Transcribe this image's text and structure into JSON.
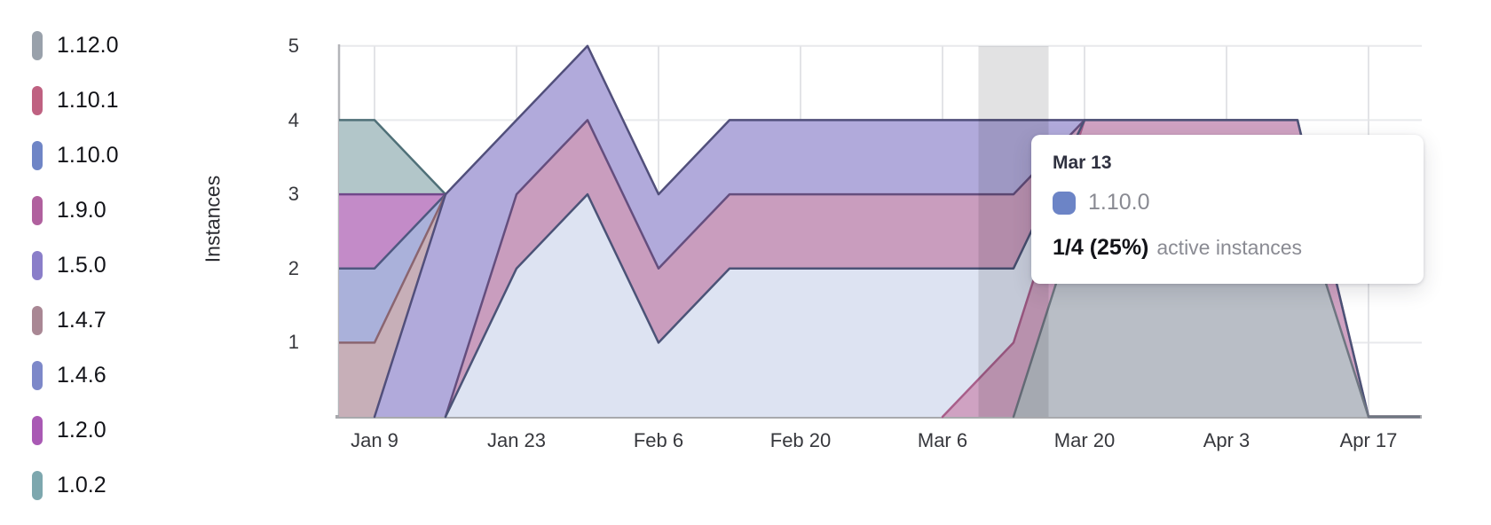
{
  "axis": {
    "y_label": "Instances",
    "y_tick_labels": [
      "5",
      "4",
      "3",
      "2",
      "1"
    ],
    "x_tick_labels": [
      "Jan 9",
      "Jan 23",
      "Feb 6",
      "Feb 20",
      "Mar 6",
      "Mar 20",
      "Apr 3",
      "Apr 17"
    ]
  },
  "legend": {
    "items": [
      {
        "label": "1.12.0",
        "color": "#99a1ab"
      },
      {
        "label": "1.10.1",
        "color": "#bf6181"
      },
      {
        "label": "1.10.0",
        "color": "#6f85c6"
      },
      {
        "label": "1.9.0",
        "color": "#b0609e"
      },
      {
        "label": "1.5.0",
        "color": "#8a7ec9"
      },
      {
        "label": "1.4.7",
        "color": "#a98794"
      },
      {
        "label": "1.4.6",
        "color": "#7d88c9"
      },
      {
        "label": "1.2.0",
        "color": "#a959b4"
      },
      {
        "label": "1.0.2",
        "color": "#7da7ae"
      }
    ]
  },
  "tooltip": {
    "date": "Mar 13",
    "series": "1.10.0",
    "series_color": "#6c84c6",
    "value": "1/4 (25%)",
    "caption": "active instances"
  },
  "chart_data": {
    "type": "area",
    "stacked": true,
    "title": "",
    "xlabel": "",
    "ylabel": "Instances",
    "ylim": [
      0,
      5
    ],
    "y_ticks": [
      1,
      2,
      3,
      4,
      5
    ],
    "grid": true,
    "legend_position": "left",
    "x": [
      "Jan 2",
      "Jan 9",
      "Jan 16",
      "Jan 23",
      "Jan 30",
      "Feb 6",
      "Feb 13",
      "Feb 20",
      "Feb 27",
      "Mar 6",
      "Mar 13",
      "Mar 20",
      "Mar 27",
      "Apr 3",
      "Apr 10",
      "Apr 17"
    ],
    "x_axis_tick_labels": [
      "Jan 9",
      "Jan 23",
      "Feb 6",
      "Feb 20",
      "Mar 6",
      "Mar 20",
      "Apr 3",
      "Apr 17"
    ],
    "unit": "instances",
    "totals": [
      4,
      4,
      3,
      4,
      5,
      3,
      4,
      4,
      4,
      4,
      4,
      4,
      4,
      4,
      4,
      0
    ],
    "hover": {
      "date": "Mar 13",
      "column_index": 10
    },
    "stack_order_bottom_to_top": [
      "1.12.0",
      "1.10.1",
      "1.10.0",
      "1.9.0",
      "1.5.0",
      "1.4.7",
      "1.4.6",
      "1.2.0",
      "1.0.2"
    ],
    "line_draw_order": [
      "1.0.2",
      "1.2.0",
      "1.4.6",
      "1.4.7",
      "1.5.0",
      "1.9.0",
      "1.10.1",
      "1.10.0",
      "1.12.0"
    ],
    "series": [
      {
        "label": "1.12.0",
        "color": "#99a1ab",
        "area_fill": "#b9bec6",
        "line_color": "#6e7681",
        "line_range": [
          10,
          16
        ],
        "values": [
          0,
          0,
          0,
          0,
          0,
          0,
          0,
          0,
          0,
          0,
          0,
          3,
          3,
          3,
          3,
          0
        ]
      },
      {
        "label": "1.10.1",
        "color": "#bf6181",
        "area_fill": "#cfa2c2",
        "line_color": "#a85e8a",
        "line_range": [
          9,
          16
        ],
        "values": [
          0,
          0,
          0,
          0,
          0,
          0,
          0,
          0,
          0,
          0,
          1,
          1,
          1,
          1,
          1,
          0
        ]
      },
      {
        "label": "1.10.0",
        "color": "#6f85c6",
        "area_fill": "#dde3f2",
        "line_color": "#4b5377",
        "line_range": [
          2,
          16
        ],
        "values": [
          0,
          0,
          0,
          2,
          3,
          1,
          2,
          2,
          2,
          2,
          1,
          0,
          0,
          0,
          0,
          0
        ]
      },
      {
        "label": "1.9.0",
        "color": "#b0609e",
        "area_fill": "#c99dbe",
        "line_color": "#644e7e",
        "line_range": [
          2,
          11
        ],
        "values": [
          0,
          0,
          0,
          1,
          1,
          1,
          1,
          1,
          1,
          1,
          1,
          0,
          0,
          0,
          0,
          0
        ]
      },
      {
        "label": "1.5.0",
        "color": "#8a7ec9",
        "area_fill": "#b1aadb",
        "line_color": "#514f7b",
        "line_range": [
          1,
          11
        ],
        "values": [
          0,
          0,
          3,
          1,
          1,
          1,
          1,
          1,
          1,
          1,
          1,
          0,
          0,
          0,
          0,
          0
        ]
      },
      {
        "label": "1.4.7",
        "color": "#a98794",
        "area_fill": "#c7afb8",
        "line_color": "#8a6570",
        "line_range": [
          0,
          2
        ],
        "values": [
          1,
          1,
          0,
          0,
          0,
          0,
          0,
          0,
          0,
          0,
          0,
          0,
          0,
          0,
          0,
          0
        ]
      },
      {
        "label": "1.4.6",
        "color": "#7d88c9",
        "area_fill": "#aab1da",
        "line_color": "#4f5880",
        "line_range": [
          0,
          2
        ],
        "values": [
          1,
          1,
          0,
          0,
          0,
          0,
          0,
          0,
          0,
          0,
          0,
          0,
          0,
          0,
          0,
          0
        ]
      },
      {
        "label": "1.2.0",
        "color": "#a959b4",
        "area_fill": "#c38bc8",
        "line_color": "#70478a",
        "line_range": [
          0,
          2
        ],
        "values": [
          1,
          1,
          0,
          0,
          0,
          0,
          0,
          0,
          0,
          0,
          0,
          0,
          0,
          0,
          0,
          0
        ]
      },
      {
        "label": "1.0.2",
        "color": "#7da7ae",
        "area_fill": "#b2c6c9",
        "line_color": "#4f7078",
        "line_range": [
          0,
          2
        ],
        "values": [
          1,
          1,
          0,
          0,
          0,
          0,
          0,
          0,
          0,
          0,
          0,
          0,
          0,
          0,
          0,
          0
        ]
      }
    ]
  }
}
